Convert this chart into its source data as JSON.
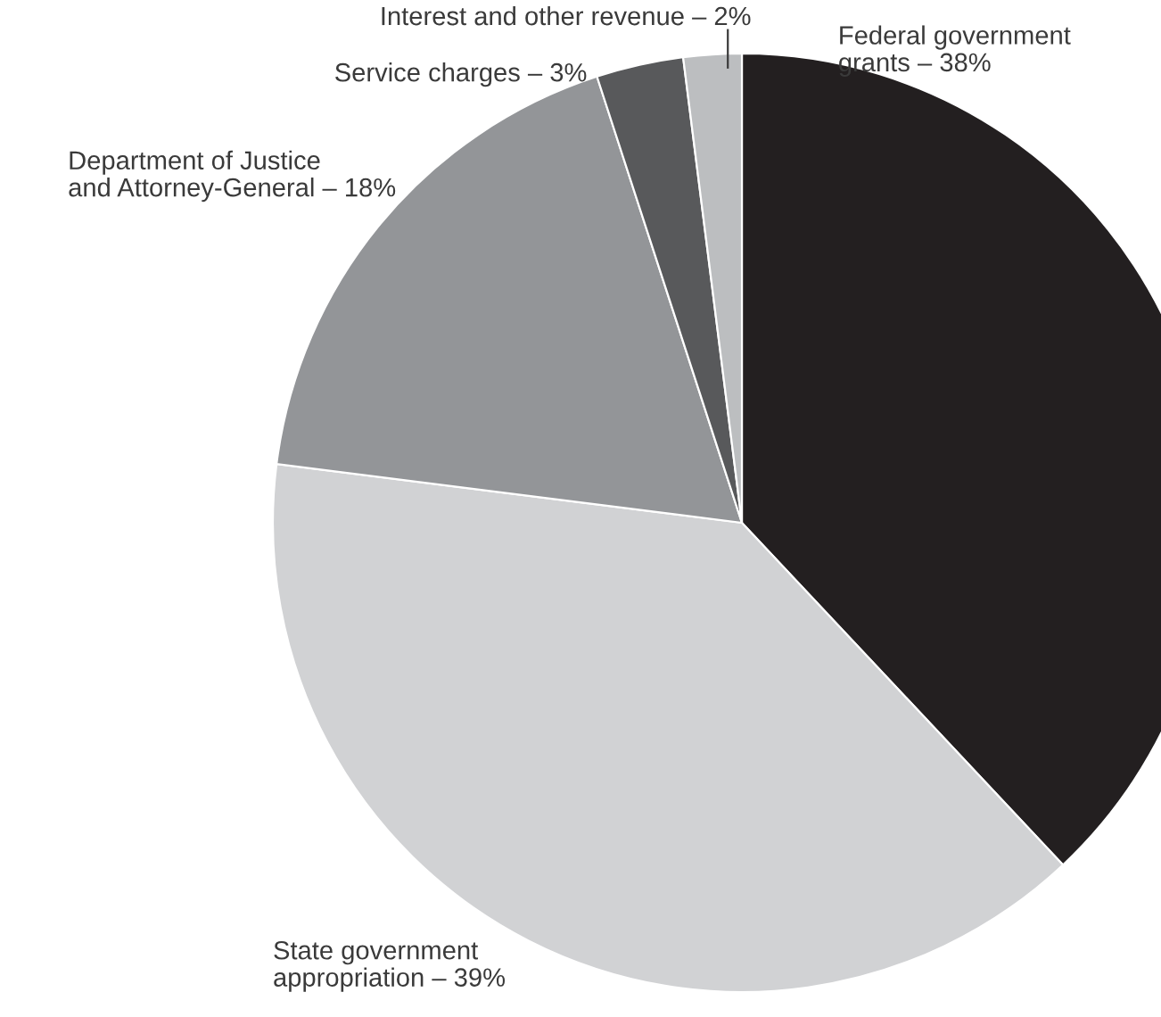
{
  "chart_data": {
    "type": "pie",
    "categories": [
      "Federal government\ngrants – 38%",
      "State government\nappropriation – 39%",
      "Department of Justice\nand Attorney-General – 18%",
      "Service charges – 3%",
      "Interest and other revenue – 2%"
    ],
    "values": [
      38,
      39,
      18,
      3,
      2
    ],
    "colors": [
      "#231f20",
      "#d1d2d4",
      "#939598",
      "#58595b",
      "#bcbec0"
    ]
  }
}
